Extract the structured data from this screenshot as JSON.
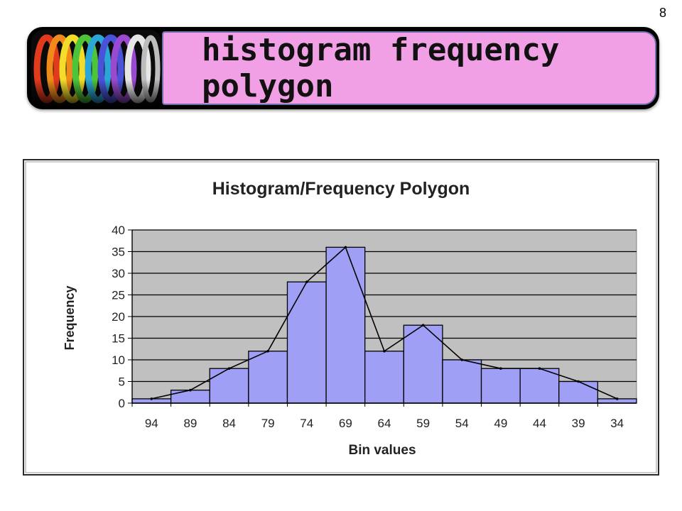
{
  "slide": {
    "number": "8",
    "title": "histogram frequency polygon"
  },
  "chart_data": {
    "type": "bar",
    "title": "Histogram/Frequency Polygon",
    "xlabel": "Bin values",
    "ylabel": "Frequency",
    "categories": [
      "94",
      "89",
      "84",
      "79",
      "74",
      "69",
      "64",
      "59",
      "54",
      "49",
      "44",
      "39",
      "34"
    ],
    "series": [
      {
        "values": [
          1,
          3,
          8,
          12,
          28,
          36,
          12,
          18,
          10,
          8,
          8,
          5,
          1
        ]
      }
    ],
    "polygon": {
      "values": [
        1,
        3,
        8,
        12,
        28,
        36,
        12,
        18,
        10,
        8,
        8,
        5,
        1
      ]
    },
    "ylim": [
      0,
      40
    ],
    "yticks": [
      "0",
      "5",
      "10",
      "15",
      "20",
      "25",
      "30",
      "35",
      "40"
    ],
    "grid": true,
    "legend": "none",
    "colors": {
      "bar": "#9f9ff5",
      "plot_bg": "#c0c0c0",
      "line": "#000000"
    }
  }
}
